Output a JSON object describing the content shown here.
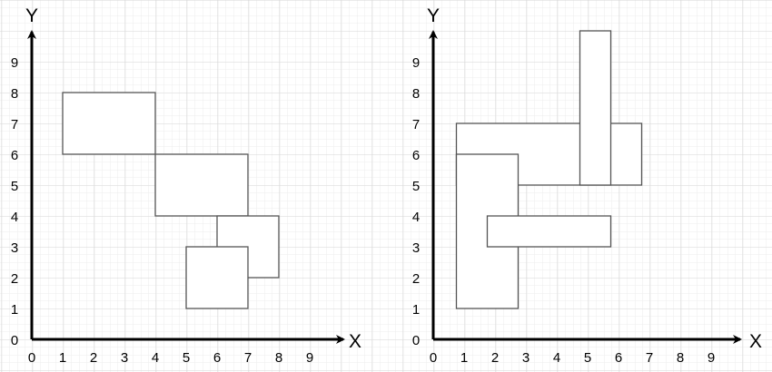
{
  "plots": [
    {
      "x_label": "X",
      "y_label": "Y",
      "x_ticks": [
        "0",
        "1",
        "2",
        "3",
        "4",
        "5",
        "6",
        "7",
        "8",
        "9"
      ],
      "y_ticks": [
        "0",
        "1",
        "2",
        "3",
        "4",
        "5",
        "6",
        "7",
        "8",
        "9"
      ],
      "rectangles": [
        {
          "x1": 1,
          "y1": 6,
          "x2": 4,
          "y2": 8
        },
        {
          "x1": 4,
          "y1": 4,
          "x2": 7,
          "y2": 6
        },
        {
          "x1": 6,
          "y1": 2,
          "x2": 8,
          "y2": 4
        },
        {
          "x1": 5,
          "y1": 1,
          "x2": 7,
          "y2": 3
        }
      ]
    },
    {
      "x_label": "X",
      "y_label": "Y",
      "x_ticks": [
        "0",
        "1",
        "2",
        "3",
        "4",
        "5",
        "6",
        "7",
        "8",
        "9"
      ],
      "y_ticks": [
        "0",
        "1",
        "2",
        "3",
        "4",
        "5",
        "6",
        "7",
        "8",
        "9"
      ],
      "rectangles": [
        {
          "x1": 0.75,
          "y1": 5,
          "x2": 6.75,
          "y2": 7
        },
        {
          "x1": 0.75,
          "y1": 1,
          "x2": 2.75,
          "y2": 6
        },
        {
          "x1": 4.75,
          "y1": 5,
          "x2": 5.75,
          "y2": 10
        },
        {
          "x1": 1.75,
          "y1": 3,
          "x2": 5.75,
          "y2": 4
        }
      ]
    }
  ],
  "colors": {
    "grid_minor": "#ececec",
    "grid_major": "#d6d6d6",
    "axis": "#000000",
    "rect_stroke": "#555555",
    "rect_fill": "#ffffff"
  }
}
